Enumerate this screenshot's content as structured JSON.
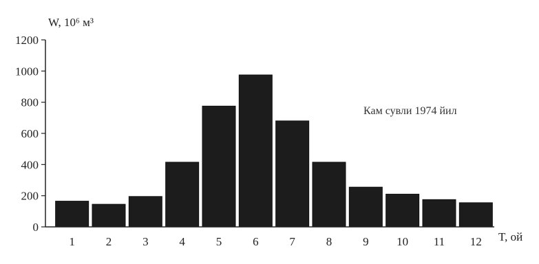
{
  "chart_data": {
    "type": "bar",
    "categories": [
      "1",
      "2",
      "3",
      "4",
      "5",
      "6",
      "7",
      "8",
      "9",
      "10",
      "11",
      "12"
    ],
    "values": [
      165,
      145,
      195,
      415,
      775,
      975,
      680,
      415,
      255,
      210,
      175,
      155
    ],
    "title": "",
    "ylabel": "W, 10⁶ м³",
    "xlabel": "T, ой",
    "ylim": [
      0,
      1200
    ],
    "yticks": [
      0,
      200,
      400,
      600,
      800,
      1000,
      1200
    ],
    "annotation": "Кам сувли 1974  йил",
    "grid": false,
    "bar_color": "#1c1c1c"
  }
}
